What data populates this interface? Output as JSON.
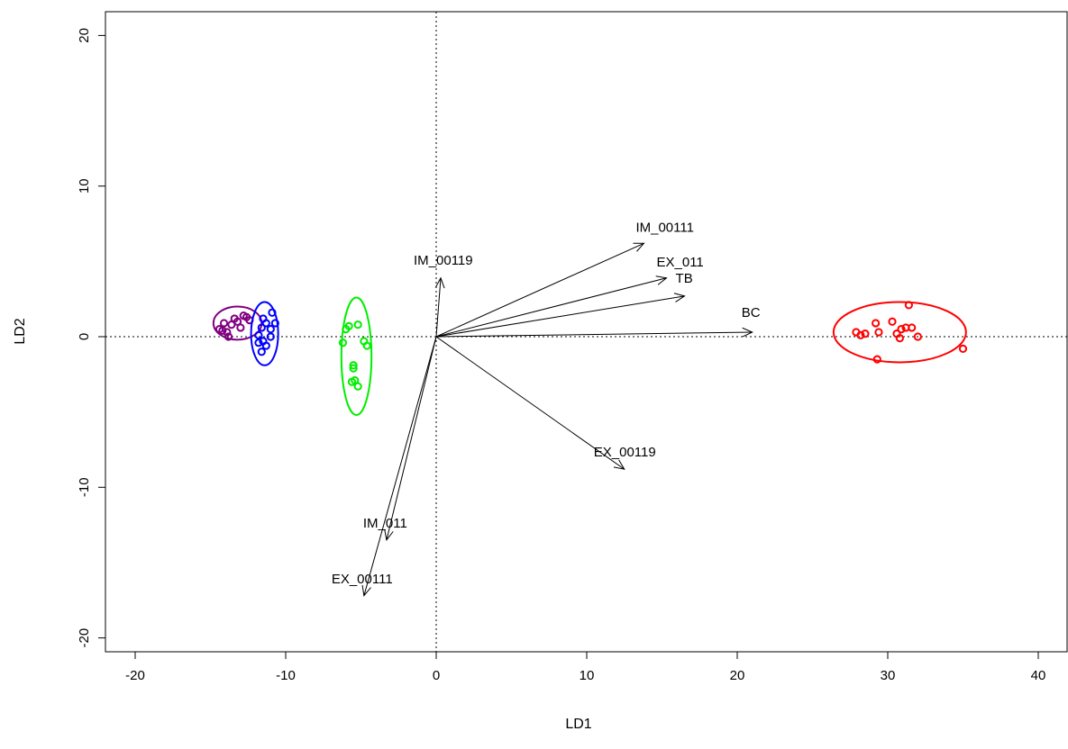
{
  "chart_data": {
    "type": "scatter",
    "title": "",
    "xlabel": "LD1",
    "ylabel": "LD2",
    "xlim": [
      -22,
      42
    ],
    "ylim": [
      -21,
      21.5
    ],
    "x_ticks": [
      -20,
      -10,
      0,
      10,
      20,
      30,
      40
    ],
    "y_ticks": [
      -20,
      -10,
      0,
      10,
      20
    ],
    "x_tick_labels": [
      "-20",
      "-10",
      "0",
      "10",
      "20",
      "30",
      "40"
    ],
    "y_tick_labels": [
      "-20",
      "-10",
      "0",
      "10",
      "20"
    ],
    "reference_lines": {
      "x": 0,
      "y": 0,
      "style": "dotted"
    },
    "grid": false,
    "legend": "none",
    "groups": [
      {
        "color": "#800080",
        "ellipse": {
          "cx": -13.2,
          "cy": 0.9,
          "rx": 1.6,
          "ry": 1.1
        },
        "points": [
          [
            -14.4,
            0.5
          ],
          [
            -14.1,
            0.9
          ],
          [
            -13.9,
            0.3
          ],
          [
            -13.6,
            0.8
          ],
          [
            -13.4,
            1.2
          ],
          [
            -13.2,
            1.0
          ],
          [
            -13.0,
            0.6
          ],
          [
            -12.8,
            1.4
          ],
          [
            -12.6,
            1.3
          ],
          [
            -12.4,
            1.1
          ],
          [
            -13.8,
            0.0
          ],
          [
            -14.2,
            0.4
          ]
        ]
      },
      {
        "color": "#0000ff",
        "ellipse": {
          "cx": -11.4,
          "cy": 0.2,
          "rx": 0.9,
          "ry": 2.1
        },
        "points": [
          [
            -11.8,
            0.1
          ],
          [
            -11.6,
            0.6
          ],
          [
            -11.5,
            -0.3
          ],
          [
            -11.3,
            0.9
          ],
          [
            -11.0,
            0.5
          ],
          [
            -10.7,
            0.9
          ],
          [
            -10.9,
            1.6
          ],
          [
            -11.6,
            -1.0
          ],
          [
            -11.3,
            -0.6
          ],
          [
            -11.5,
            1.2
          ],
          [
            -11.8,
            -0.4
          ],
          [
            -11.0,
            0.0
          ]
        ]
      },
      {
        "color": "#00ee00",
        "ellipse": {
          "cx": -5.3,
          "cy": -1.3,
          "rx": 1.0,
          "ry": 3.9
        },
        "points": [
          [
            -6.0,
            0.5
          ],
          [
            -5.8,
            0.7
          ],
          [
            -5.2,
            0.8
          ],
          [
            -5.5,
            -1.9
          ],
          [
            -5.5,
            -2.1
          ],
          [
            -5.4,
            -2.9
          ],
          [
            -5.2,
            -3.3
          ],
          [
            -4.8,
            -0.3
          ],
          [
            -4.6,
            -0.6
          ],
          [
            -6.2,
            -0.4
          ],
          [
            -5.6,
            -3.0
          ]
        ]
      },
      {
        "color": "#ff0000",
        "ellipse": {
          "cx": 30.8,
          "cy": 0.3,
          "rx": 4.4,
          "ry": 2.0
        },
        "points": [
          [
            27.9,
            0.3
          ],
          [
            28.2,
            0.1
          ],
          [
            28.5,
            0.2
          ],
          [
            29.2,
            0.9
          ],
          [
            29.4,
            0.3
          ],
          [
            30.3,
            1.0
          ],
          [
            30.6,
            0.2
          ],
          [
            30.9,
            0.5
          ],
          [
            30.8,
            -0.1
          ],
          [
            31.2,
            0.6
          ],
          [
            31.4,
            2.1
          ],
          [
            31.6,
            0.6
          ],
          [
            32.0,
            0.0
          ],
          [
            35.0,
            -0.8
          ],
          [
            29.3,
            -1.5
          ]
        ]
      }
    ],
    "vectors": [
      {
        "label": "IM_00111",
        "x": 13.8,
        "y": 6.2
      },
      {
        "label": "EX_011",
        "x": 15.3,
        "y": 3.9
      },
      {
        "label": "TB",
        "x": 16.5,
        "y": 2.7
      },
      {
        "label": "BC",
        "x": 21.0,
        "y": 0.3
      },
      {
        "label": "IM_00119",
        "x": 0.3,
        "y": 3.9
      },
      {
        "label": "EX_00119",
        "x": 12.5,
        "y": -8.8
      },
      {
        "label": "IM_011",
        "x": -3.3,
        "y": -13.5
      },
      {
        "label": "EX_00111",
        "x": -4.8,
        "y": -17.2
      }
    ]
  }
}
